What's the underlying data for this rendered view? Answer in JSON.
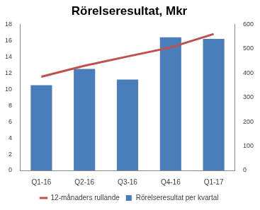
{
  "chart_data": {
    "type": "bar",
    "title": "Rörelseresultat, Mkr",
    "categories": [
      "Q1-16",
      "Q2-16",
      "Q3-16",
      "Q4-16",
      "Q1-17"
    ],
    "series": [
      {
        "name": "Rörelseresultat per kvartal",
        "color": "#4a7ebb",
        "type": "bar",
        "values": [
          10.5,
          12.5,
          11.2,
          16.4,
          16.2
        ]
      },
      {
        "name": "12-månaders rullande",
        "color": "#c0504d",
        "type": "line",
        "axis": "y2",
        "values": [
          385,
          430,
          468,
          505,
          560
        ]
      }
    ],
    "ylim": [
      0,
      18
    ],
    "yticks": [
      0,
      2,
      4,
      6,
      8,
      10,
      12,
      14,
      16,
      18
    ],
    "y2lim": [
      0,
      600
    ],
    "y2ticks": [
      0,
      100,
      200,
      300,
      400,
      500,
      600
    ],
    "grid": false,
    "legend": "bottom"
  }
}
